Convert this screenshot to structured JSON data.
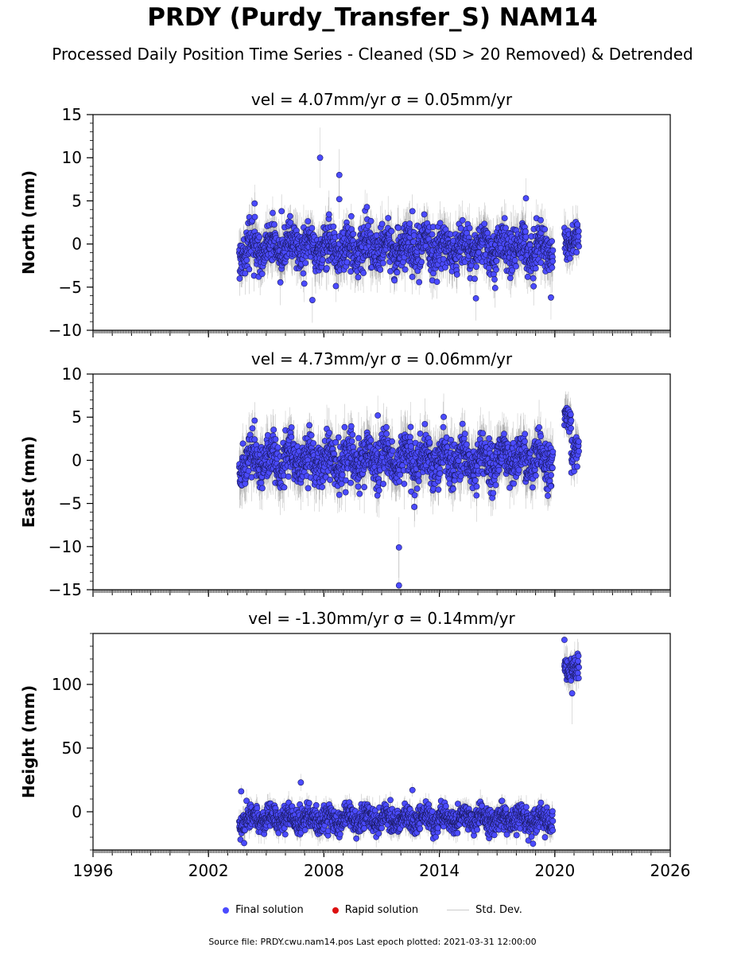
{
  "title": "PRDY (Purdy_Transfer_S) NAM14",
  "subtitle": "Processed Daily Position Time Series - Cleaned (SD > 20 Removed) & Detrended",
  "colors": {
    "final": "#4b4bff",
    "final_edge": "#1a1a60",
    "rapid": "#dd1111",
    "stddev": "#c8c8c8",
    "stddev_dense": "#555555"
  },
  "legend": {
    "final": "Final solution",
    "rapid": "Rapid solution",
    "stddev": "Std. Dev."
  },
  "source": "Source file: PRDY.cwu.nam14.pos  Last epoch plotted: 2021-03-31 12:00:00",
  "chart_data": [
    {
      "type": "scatter",
      "panel": "north",
      "title": "vel = 4.07mm/yr   σ = 0.05mm/yr",
      "ylabel": "North (mm)",
      "xlim": [
        1996,
        2026
      ],
      "ylim": [
        -10,
        15
      ],
      "yticks": [
        -10,
        -5,
        0,
        5,
        10,
        15
      ],
      "ytick_labels": [
        "−10",
        "−5",
        "0",
        "5",
        "10",
        "15"
      ],
      "segments": [
        {
          "start": 2003.6,
          "end": 2019.9,
          "mean": -0.5,
          "spread": 1.6,
          "err": 1.8
        },
        {
          "start": 2020.5,
          "end": 2021.25,
          "mean": 0.6,
          "spread": 1.2,
          "err": 1.5
        }
      ],
      "outliers": [
        [
          2007.8,
          10.0
        ],
        [
          2008.8,
          8.0
        ],
        [
          2008.8,
          5.2
        ],
        [
          2018.5,
          5.3
        ],
        [
          2007.4,
          -6.5
        ],
        [
          2015.9,
          -6.3
        ],
        [
          2019.8,
          -6.2
        ],
        [
          2016.9,
          -5.1
        ],
        [
          2018.9,
          -4.9
        ],
        [
          2004.4,
          4.7
        ],
        [
          2005.8,
          3.8
        ],
        [
          2012.6,
          3.8
        ]
      ]
    },
    {
      "type": "scatter",
      "panel": "east",
      "title": "vel = 4.73mm/yr   σ = 0.06mm/yr",
      "ylabel": "East (mm)",
      "xlim": [
        1996,
        2026
      ],
      "ylim": [
        -15,
        10
      ],
      "yticks": [
        -15,
        -10,
        -5,
        0,
        5,
        10
      ],
      "ytick_labels": [
        "−15",
        "−10",
        "−5",
        "0",
        "5",
        "10"
      ],
      "segments": [
        {
          "start": 2003.6,
          "end": 2019.9,
          "mean": 0.0,
          "spread": 1.7,
          "err": 2.0
        },
        {
          "start": 2020.5,
          "end": 2020.85,
          "mean": 5.5,
          "spread": 1.0,
          "err": 1.5
        },
        {
          "start": 2020.85,
          "end": 2021.25,
          "mean": 0.8,
          "spread": 1.2,
          "err": 1.5
        }
      ],
      "outliers": [
        [
          2011.9,
          -10.1
        ],
        [
          2011.9,
          -14.5
        ],
        [
          2004.4,
          4.6
        ],
        [
          2010.8,
          5.2
        ],
        [
          2008.8,
          -4.0
        ],
        [
          2012.7,
          -5.4
        ],
        [
          2016.8,
          -3.8
        ],
        [
          2019.8,
          -3.0
        ]
      ]
    },
    {
      "type": "scatter",
      "panel": "height",
      "title": "vel = -1.30mm/yr   σ = 0.14mm/yr",
      "ylabel": "Height (mm)",
      "xlim": [
        1996,
        2026
      ],
      "ylim": [
        -30,
        140
      ],
      "yticks": [
        0,
        50,
        100
      ],
      "ytick_labels": [
        "0",
        "50",
        "100"
      ],
      "segments": [
        {
          "start": 2003.6,
          "end": 2019.9,
          "mean": -6,
          "spread": 6.5,
          "err": 6
        },
        {
          "start": 2020.5,
          "end": 2021.25,
          "mean": 113,
          "spread": 7,
          "err": 8
        }
      ],
      "outliers": [
        [
          2006.8,
          23
        ],
        [
          2003.7,
          16
        ],
        [
          2012.6,
          17
        ],
        [
          2020.5,
          135
        ],
        [
          2020.9,
          93
        ]
      ]
    }
  ],
  "xaxis": {
    "ticks": [
      1996,
      2002,
      2008,
      2014,
      2020,
      2026
    ],
    "tick_labels": [
      "1996",
      "2002",
      "2008",
      "2014",
      "2020",
      "2026"
    ]
  }
}
